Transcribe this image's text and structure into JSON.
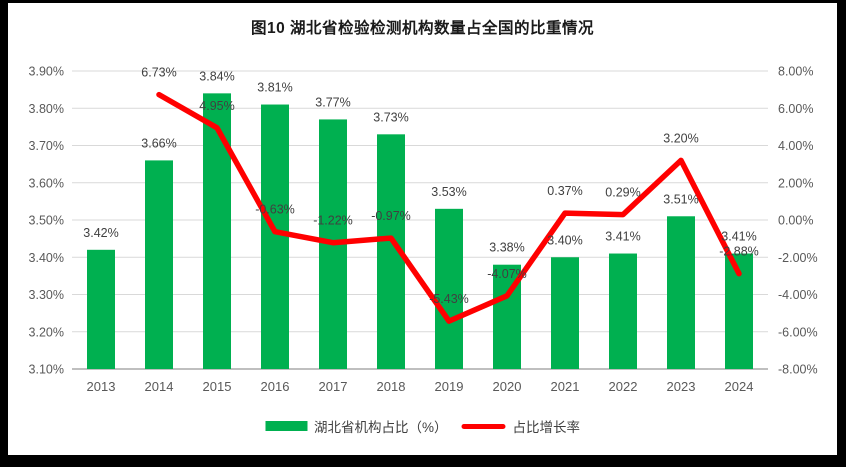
{
  "chart_data": {
    "type": "bar+line combo",
    "title": "图10 湖北省检验检测机构数量占全国的比重情况",
    "categories": [
      "2013",
      "2014",
      "2015",
      "2016",
      "2017",
      "2018",
      "2019",
      "2020",
      "2021",
      "2022",
      "2023",
      "2024"
    ],
    "series": [
      {
        "name": "湖北省机构占比（%）",
        "type": "bar",
        "axis": "left",
        "color": "#00B050",
        "values": [
          3.42,
          3.66,
          3.84,
          3.81,
          3.77,
          3.73,
          3.53,
          3.38,
          3.4,
          3.41,
          3.51,
          3.41
        ],
        "labels": [
          "3.42%",
          "3.66%",
          "3.84%",
          "3.81%",
          "3.77%",
          "3.73%",
          "3.53%",
          "3.38%",
          "3.40%",
          "3.41%",
          "3.51%",
          "3.41%"
        ]
      },
      {
        "name": "占比增长率",
        "type": "line",
        "axis": "right",
        "color": "#FF0000",
        "values": [
          null,
          6.73,
          4.95,
          -0.63,
          -1.22,
          -0.97,
          -5.43,
          -4.07,
          0.37,
          0.29,
          3.2,
          -2.88
        ],
        "labels": [
          null,
          "6.73%",
          "4.95%",
          "-0.63%",
          "-1.22%",
          "-0.97%",
          "-5.43%",
          "-4.07%",
          "0.37%",
          "0.29%",
          "3.20%",
          "-2.88%"
        ]
      }
    ],
    "left_axis": {
      "min": 3.1,
      "max": 3.9,
      "step": 0.1,
      "ticks": [
        "3.90%",
        "3.80%",
        "3.70%",
        "3.60%",
        "3.50%",
        "3.40%",
        "3.30%",
        "3.20%",
        "3.10%"
      ]
    },
    "right_axis": {
      "min": -8.0,
      "max": 8.0,
      "step": 2.0,
      "ticks": [
        "8.00%",
        "6.00%",
        "4.00%",
        "2.00%",
        "0.00%",
        "-2.00%",
        "-4.00%",
        "-6.00%",
        "-8.00%"
      ]
    },
    "grid": "horizontal",
    "legend_position": "bottom",
    "colors": {
      "bar": "#00B050",
      "line": "#FF0000",
      "tick_text": "#595959",
      "data_label_text": "#404040",
      "gridline": "#D9D9D9",
      "axis_line": "#BFBFBF",
      "frame": "#000000"
    }
  }
}
